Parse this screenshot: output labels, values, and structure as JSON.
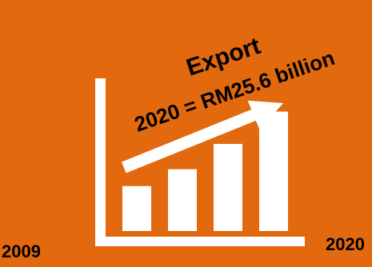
{
  "colors": {
    "background": "#e2690d",
    "marks": "#ffffff",
    "year_text": "#000000",
    "headline_text": "#000000"
  },
  "chart_data": {
    "type": "bar",
    "title": "Export",
    "subtitle": "2020 = RM25.6 billion",
    "x_start_label": "2009",
    "x_end_label": "2020",
    "categories": [
      "",
      "",
      "",
      ""
    ],
    "values": [
      6.4,
      8.8,
      12.4,
      17.0
    ],
    "ylim": [
      0,
      25.6
    ],
    "trend": "increasing",
    "grid": false,
    "legend": "none"
  }
}
